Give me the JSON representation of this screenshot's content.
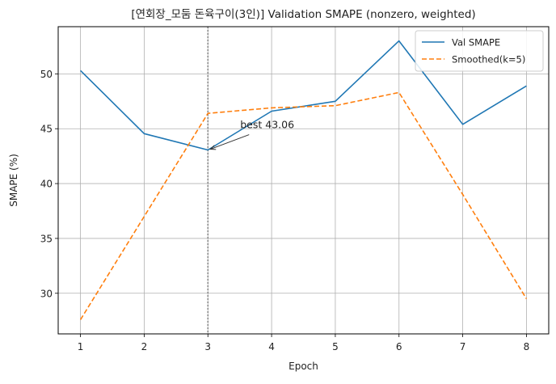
{
  "chart_data": {
    "type": "line",
    "title": "[연회장_모둠 돈육구이(3인)] Validation SMAPE (nonzero, weighted)",
    "xlabel": "Epoch",
    "ylabel": "SMAPE (%)",
    "x": [
      1,
      2,
      3,
      4,
      5,
      6,
      7,
      8
    ],
    "xlim": [
      0.65,
      8.35
    ],
    "ylim": [
      26.3,
      54.3
    ],
    "xticks": [
      "1",
      "2",
      "3",
      "4",
      "5",
      "6",
      "7",
      "8"
    ],
    "yticks": [
      "30",
      "35",
      "40",
      "45",
      "50"
    ],
    "grid": true,
    "legend_position": "top-right",
    "series": [
      {
        "name": "Val SMAPE",
        "values": [
          50.3,
          44.55,
          43.06,
          46.6,
          47.5,
          53.0,
          45.4,
          48.9
        ],
        "color": "#1f77b4",
        "style": "solid"
      },
      {
        "name": "Smoothed(k=5)",
        "values": [
          27.6,
          37.0,
          46.4,
          46.9,
          47.1,
          48.3,
          39.0,
          29.5
        ],
        "color": "#ff7f0e",
        "style": "dashed"
      }
    ],
    "best_marker": {
      "x": 3,
      "y": 43.06,
      "color": "#808080",
      "style": "dotted"
    },
    "annotations": [
      {
        "text": "best 43.06",
        "x": 3,
        "y": 43.06
      }
    ]
  }
}
